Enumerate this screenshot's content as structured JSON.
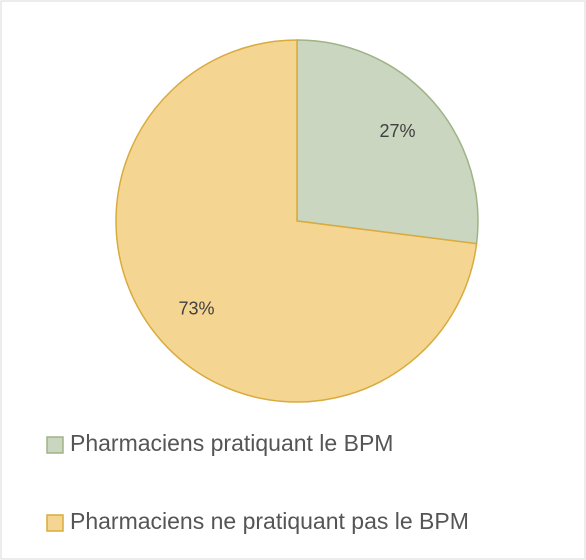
{
  "chart_data": {
    "type": "pie",
    "categories": [
      "Pharmaciens pratiquant le BPM",
      "Pharmaciens ne pratiquant pas le BPM"
    ],
    "values": [
      27,
      73
    ],
    "value_labels": [
      "27%",
      "73%"
    ],
    "colors": [
      "#cad6bf",
      "#f5d592"
    ],
    "edge_colors": [
      "#9fb386",
      "#d9ab3c"
    ],
    "legend": "bottom"
  }
}
